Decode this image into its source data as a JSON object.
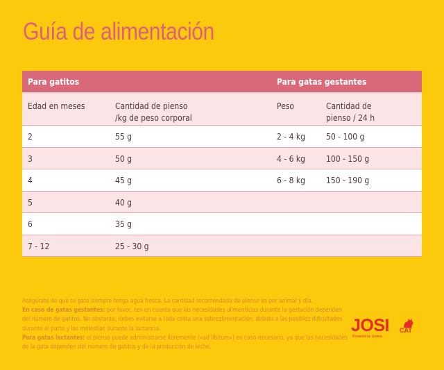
{
  "title": "Guía de alimentación",
  "table": {
    "group_headers": {
      "kittens": "Para gatitos",
      "pregnant": "Para gatas gestantes"
    },
    "columns": {
      "age": "Edad en meses",
      "amount_line1": "Cantidad de pienso",
      "amount_line2": "/kg de peso corporal",
      "weight": "Peso",
      "pregnant_amount_line1": "Cantidad de",
      "pregnant_amount_line2": "pienso / 24 h"
    },
    "rows": [
      {
        "age": "2",
        "amount": "55 g",
        "weight": "2 - 4 kg",
        "pregnant_amount": "50 - 100 g"
      },
      {
        "age": "3",
        "amount": "50 g",
        "weight": "4 - 6 kg",
        "pregnant_amount": "100 - 150 g"
      },
      {
        "age": "4",
        "amount": "45 g",
        "weight": "6 - 8 kg",
        "pregnant_amount": "150 - 190 g"
      },
      {
        "age": "5",
        "amount": "40 g",
        "weight": "",
        "pregnant_amount": ""
      },
      {
        "age": "6",
        "amount": "35 g",
        "weight": "",
        "pregnant_amount": ""
      },
      {
        "age": "7 - 12",
        "amount": "25 - 30 g",
        "weight": "",
        "pregnant_amount": ""
      }
    ]
  },
  "notes": {
    "line1": "Asegúrate de que tu gato siempre tenga agua fresca. La cantidad recomendada de pienso es por animal y día.",
    "pregnant_label": "En caso de gatas gestantes:",
    "pregnant_text": " por favor, ten en cuenta que las necesidades alimenticias durante la gestación dependen del número de gatitos. No obstante, debes evitarse a toda costa una sobrealimentación, debido a las posibles dificultades durante el parto y las molestias durante la lactancia.",
    "lactating_label": "Para gatas lactantes:",
    "lactating_text": " el pienso puede administrarse libremente («ad libitum») en caso necesario, ya que las necesidades de la gata dependen del número de gatitos y de la producción de leche."
  },
  "logo": {
    "brand": "JOSI",
    "cat": "CAT",
    "sub": "Powered by Josera",
    "color": "#e52d27",
    "icon": "cat-icon"
  }
}
